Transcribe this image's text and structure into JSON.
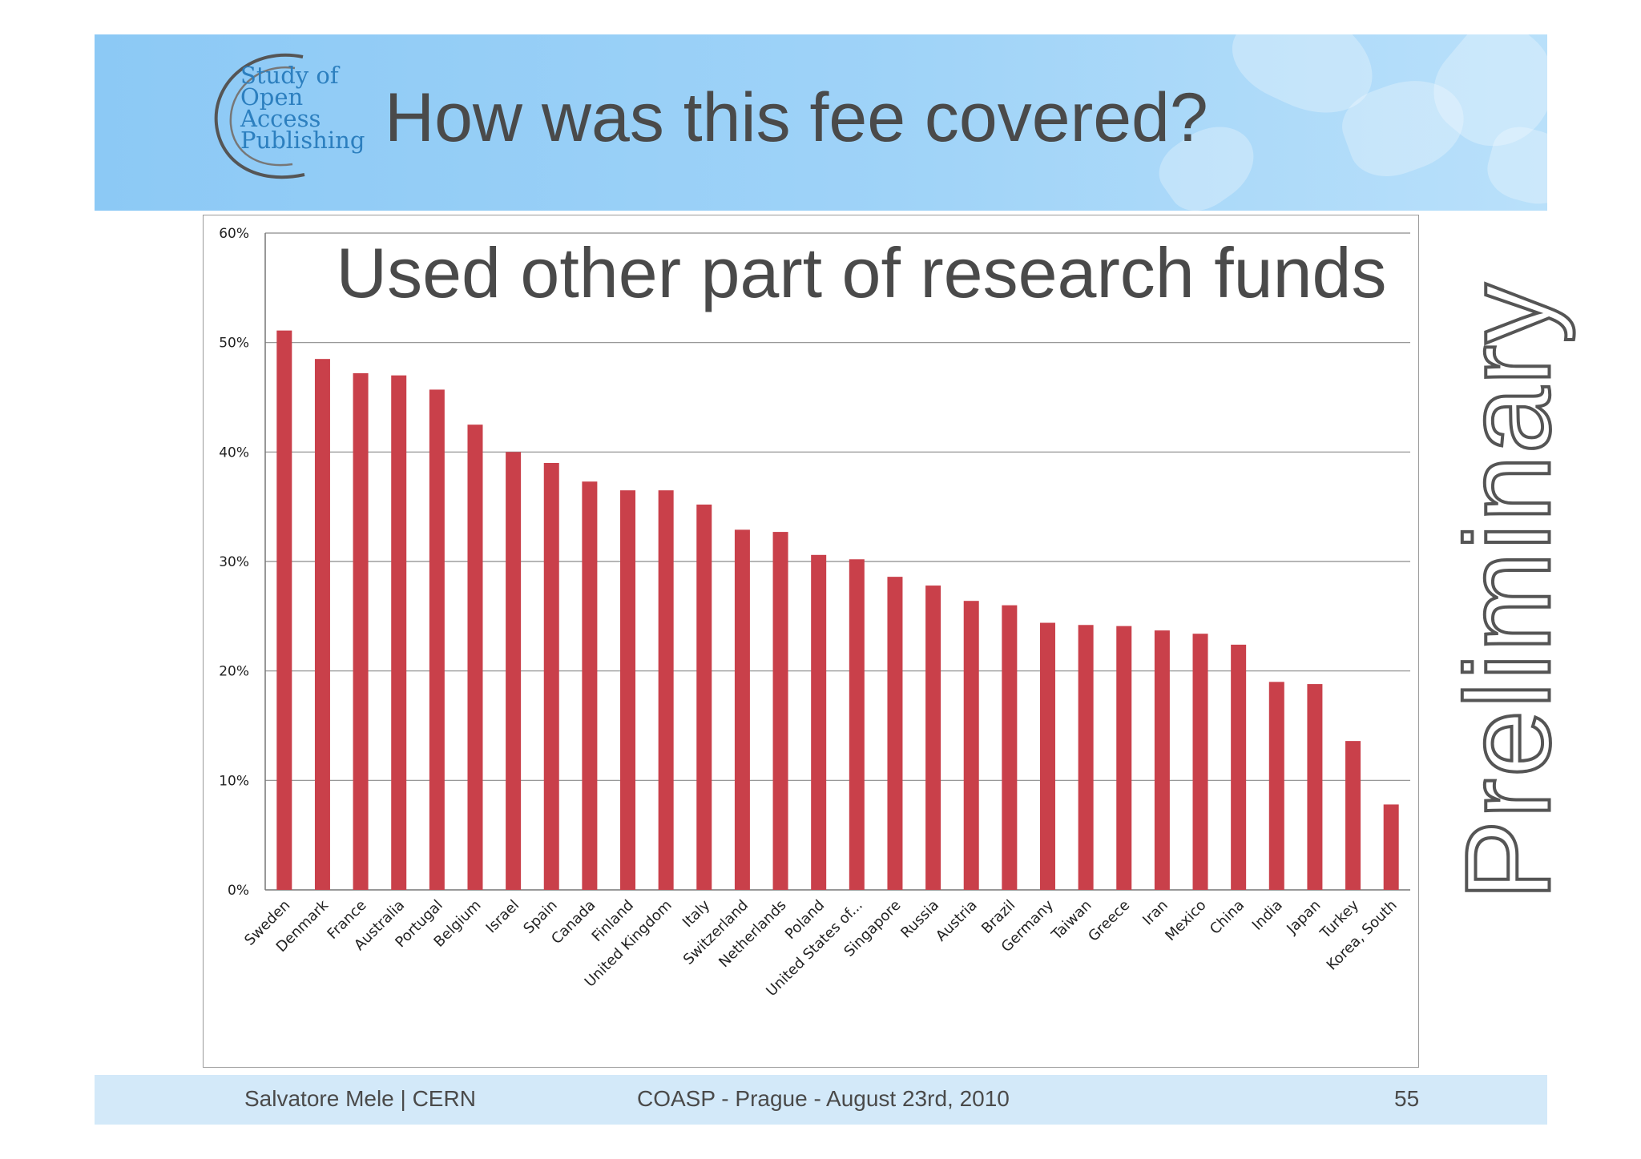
{
  "header": {
    "logo_lines": [
      "Study of",
      "Open",
      "Access",
      "Publishing"
    ],
    "title": "How was this fee covered?"
  },
  "watermark": "Preliminary",
  "footer": {
    "author": "Salvatore Mele | CERN",
    "event": "COASP - Prague - August 23rd, 2010",
    "page": "55"
  },
  "chart_data": {
    "type": "bar",
    "title": "Used other part of research funds",
    "xlabel": "",
    "ylabel": "",
    "ylim": [
      0,
      60
    ],
    "y_ticks": [
      "0%",
      "10%",
      "20%",
      "30%",
      "40%",
      "50%",
      "60%"
    ],
    "grid": true,
    "bar_color": "#c9404a",
    "categories": [
      "Sweden",
      "Denmark",
      "France",
      "Australia",
      "Portugal",
      "Belgium",
      "Israel",
      "Spain",
      "Canada",
      "Finland",
      "United Kingdom",
      "Italy",
      "Switzerland",
      "Netherlands",
      "Poland",
      "United States of...",
      "Singapore",
      "Russia",
      "Austria",
      "Brazil",
      "Germany",
      "Taiwan",
      "Greece",
      "Iran",
      "Mexico",
      "China",
      "India",
      "Japan",
      "Turkey",
      "Korea, South"
    ],
    "values": [
      51.1,
      48.5,
      47.2,
      47.0,
      45.7,
      42.5,
      40.0,
      39.0,
      37.3,
      36.5,
      36.5,
      35.2,
      32.9,
      32.7,
      30.6,
      30.2,
      28.6,
      27.8,
      26.4,
      26.0,
      24.4,
      24.2,
      24.1,
      23.7,
      23.4,
      22.4,
      19.0,
      18.8,
      13.6,
      7.8
    ]
  }
}
